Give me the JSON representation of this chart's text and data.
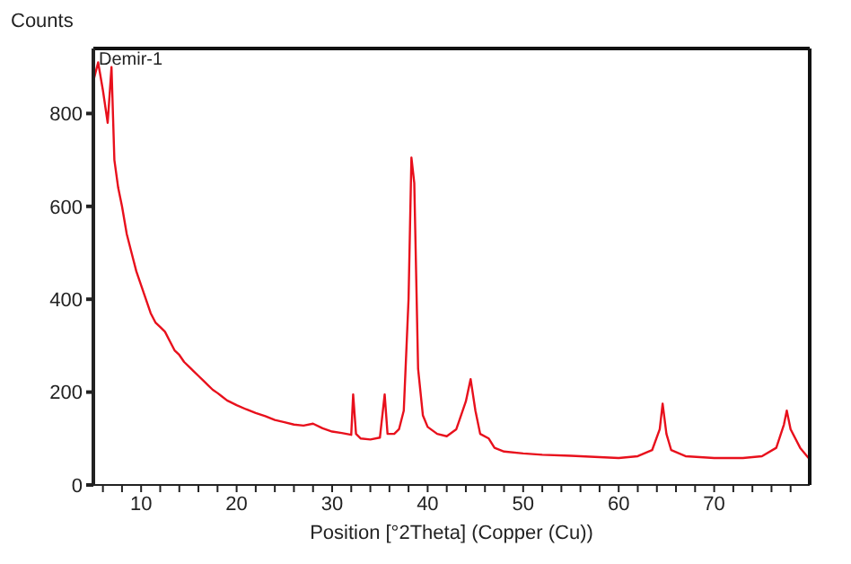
{
  "chart_data": {
    "type": "line",
    "xlabel": "Position [°2Theta] (Copper (Cu))",
    "ylabel": "Counts",
    "annotations": [
      "Demir-1"
    ],
    "xlim": [
      5,
      80
    ],
    "ylim": [
      0,
      940
    ],
    "xticks": [
      {
        "value": 6,
        "label": null
      },
      {
        "value": 8,
        "label": null
      },
      10,
      {
        "value": 12,
        "label": null
      },
      {
        "value": 14,
        "label": null
      },
      {
        "value": 16,
        "label": null
      },
      {
        "value": 18,
        "label": null
      },
      20,
      {
        "value": 22,
        "label": null
      },
      {
        "value": 24,
        "label": null
      },
      {
        "value": 26,
        "label": null
      },
      {
        "value": 28,
        "label": null
      },
      30,
      {
        "value": 32,
        "label": null
      },
      {
        "value": 34,
        "label": null
      },
      {
        "value": 36,
        "label": null
      },
      {
        "value": 38,
        "label": null
      },
      40,
      {
        "value": 42,
        "label": null
      },
      {
        "value": 44,
        "label": null
      },
      {
        "value": 46,
        "label": null
      },
      {
        "value": 48,
        "label": null
      },
      50,
      {
        "value": 52,
        "label": null
      },
      {
        "value": 54,
        "label": null
      },
      {
        "value": 56,
        "label": null
      },
      {
        "value": 58,
        "label": null
      },
      60,
      {
        "value": 62,
        "label": null
      },
      {
        "value": 64,
        "label": null
      },
      {
        "value": 66,
        "label": null
      },
      {
        "value": 68,
        "label": null
      },
      70,
      {
        "value": 72,
        "label": null
      },
      {
        "value": 74,
        "label": null
      },
      {
        "value": 76,
        "label": null
      },
      {
        "value": 78,
        "label": null
      }
    ],
    "yticks": [
      0,
      200,
      400,
      600,
      800
    ],
    "marker": "none",
    "line_style": "solid",
    "series": [
      {
        "color": "#e8101c",
        "x": [
          5,
          5.5,
          6,
          6.5,
          6.9,
          7.2,
          7.6,
          8,
          8.5,
          9,
          9.5,
          10,
          10.5,
          11,
          11.5,
          12,
          12.5,
          13,
          13.5,
          14,
          14.5,
          15,
          15.5,
          16,
          16.5,
          17,
          17.5,
          18,
          18.5,
          19,
          20,
          21,
          22,
          23,
          24,
          25,
          26,
          27,
          28,
          29,
          30,
          31,
          32,
          32.2,
          32.5,
          33,
          34,
          35,
          35.5,
          35.8,
          36.5,
          37,
          37.5,
          38,
          38.3,
          38.6,
          39,
          39.5,
          40,
          41,
          42,
          43,
          44,
          44.5,
          45,
          45.5,
          46.4,
          47,
          48,
          50,
          52,
          55,
          58,
          60,
          62,
          63.5,
          64.3,
          64.6,
          65,
          65.5,
          67,
          70,
          73,
          75,
          76.5,
          77.3,
          77.6,
          78,
          79,
          80
        ],
        "values": [
          870,
          910,
          850,
          780,
          900,
          700,
          640,
          600,
          540,
          500,
          460,
          430,
          400,
          370,
          350,
          340,
          330,
          310,
          290,
          280,
          265,
          255,
          245,
          235,
          225,
          215,
          205,
          198,
          190,
          182,
          172,
          163,
          155,
          148,
          140,
          135,
          130,
          128,
          132,
          122,
          115,
          112,
          108,
          195,
          110,
          100,
          98,
          102,
          195,
          110,
          110,
          120,
          160,
          400,
          705,
          650,
          250,
          150,
          125,
          110,
          105,
          120,
          180,
          228,
          160,
          110,
          100,
          80,
          72,
          68,
          65,
          63,
          60,
          58,
          62,
          75,
          120,
          175,
          110,
          75,
          62,
          58,
          58,
          62,
          80,
          130,
          160,
          120,
          80,
          55
        ]
      }
    ]
  }
}
